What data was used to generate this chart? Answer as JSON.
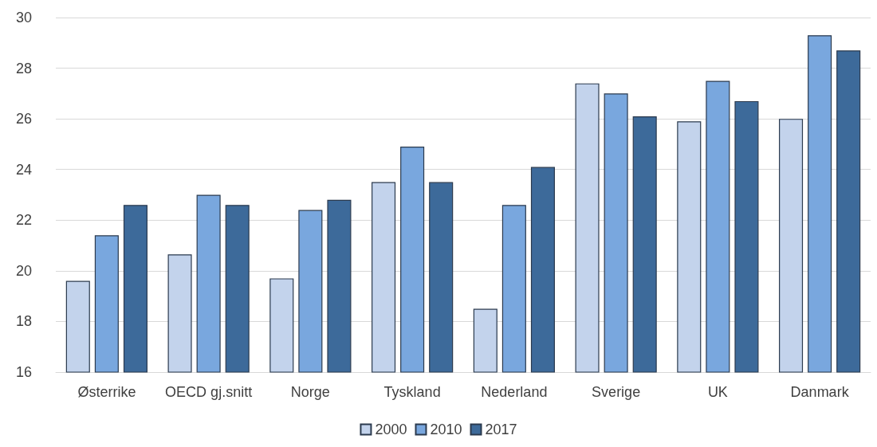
{
  "chart_data": {
    "type": "bar",
    "categories": [
      "Østerrike",
      "OECD gj.snitt",
      "Norge",
      "Tyskland",
      "Nederland",
      "Sverige",
      "UK",
      "Danmark"
    ],
    "series": [
      {
        "name": "2000",
        "color": "#c3d3ec",
        "values": [
          19.6,
          20.65,
          19.7,
          23.5,
          18.5,
          27.4,
          25.9,
          26.0
        ]
      },
      {
        "name": "2010",
        "color": "#79a7de",
        "values": [
          21.4,
          23.0,
          22.4,
          24.9,
          22.6,
          27.0,
          27.5,
          29.3
        ]
      },
      {
        "name": "2017",
        "color": "#3d6a9a",
        "values": [
          22.6,
          22.6,
          22.8,
          23.5,
          24.1,
          26.1,
          26.7,
          28.7
        ]
      }
    ],
    "ylim": [
      16,
      30
    ],
    "yticks": [
      16,
      18,
      20,
      22,
      24,
      26,
      28,
      30
    ],
    "grid": "y",
    "legend": "bottom"
  }
}
